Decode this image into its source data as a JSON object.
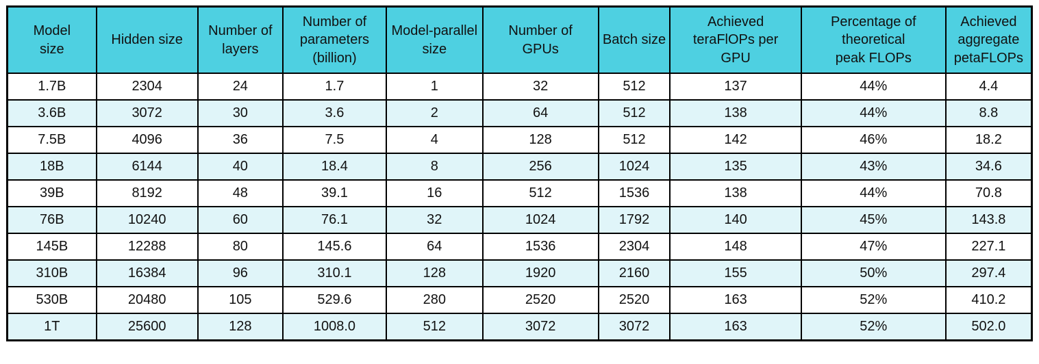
{
  "chart_data": {
    "type": "table",
    "columns": [
      "Model\nsize",
      "Hidden size",
      "Number of\nlayers",
      "Number of\nparameters\n(billion)",
      "Model-parallel\nsize",
      "Number of\nGPUs",
      "Batch size",
      "Achieved\nteraFlOPs per\nGPU",
      "Percentage of\ntheoretical\npeak FLOPs",
      "Achieved\naggregate\npetaFLOPs"
    ],
    "rows": [
      [
        "1.7B",
        "2304",
        "24",
        "1.7",
        "1",
        "32",
        "512",
        "137",
        "44%",
        "4.4"
      ],
      [
        "3.6B",
        "3072",
        "30",
        "3.6",
        "2",
        "64",
        "512",
        "138",
        "44%",
        "8.8"
      ],
      [
        "7.5B",
        "4096",
        "36",
        "7.5",
        "4",
        "128",
        "512",
        "142",
        "46%",
        "18.2"
      ],
      [
        "18B",
        "6144",
        "40",
        "18.4",
        "8",
        "256",
        "1024",
        "135",
        "43%",
        "34.6"
      ],
      [
        "39B",
        "8192",
        "48",
        "39.1",
        "16",
        "512",
        "1536",
        "138",
        "44%",
        "70.8"
      ],
      [
        "76B",
        "10240",
        "60",
        "76.1",
        "32",
        "1024",
        "1792",
        "140",
        "45%",
        "143.8"
      ],
      [
        "145B",
        "12288",
        "80",
        "145.6",
        "64",
        "1536",
        "2304",
        "148",
        "47%",
        "227.1"
      ],
      [
        "310B",
        "16384",
        "96",
        "310.1",
        "128",
        "1920",
        "2160",
        "155",
        "50%",
        "297.4"
      ],
      [
        "530B",
        "20480",
        "105",
        "529.6",
        "280",
        "2520",
        "2520",
        "163",
        "52%",
        "410.2"
      ],
      [
        "1T",
        "25600",
        "128",
        "1008.0",
        "512",
        "3072",
        "3072",
        "163",
        "52%",
        "502.0"
      ]
    ],
    "legend_position": "none",
    "grid": "full-borders"
  },
  "colors": {
    "header_bg": "#4ed0e1",
    "row_bg": "#ffffff",
    "row_alt_bg": "#e0f5f9",
    "border": "#000000",
    "text": "#111111"
  }
}
